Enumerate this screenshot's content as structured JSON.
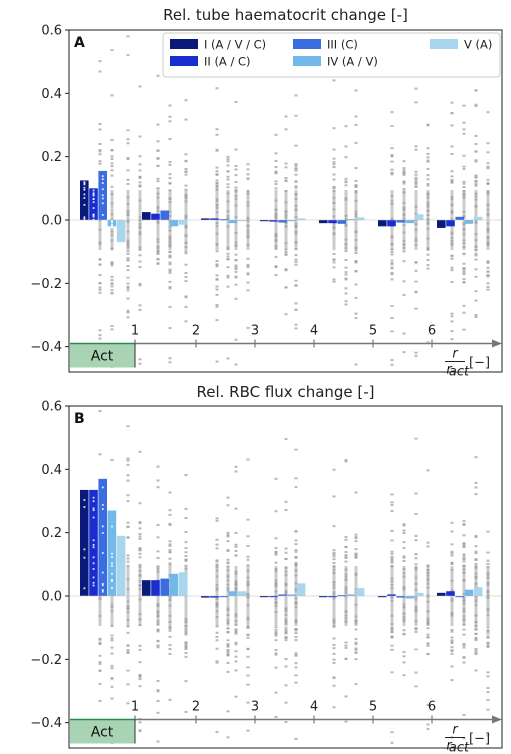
{
  "colors": {
    "I": "#0a1a7a",
    "II": "#1a2ed0",
    "III": "#3a6ee0",
    "IV": "#72b8e8",
    "V": "#a8d6ec",
    "scatter": "#a0a0a0",
    "act_fill": "#a8d4b4",
    "act_edge": "#2a8a4a",
    "axis_arrow": "#777777"
  },
  "legend": [
    "I (A / V / C)",
    "II (A / C)",
    "III (C)",
    "IV (A / V)",
    "V (A)"
  ],
  "axis_labels": {
    "r_numer": "r",
    "r_denom": "r",
    "r_sub": "act",
    "r_unit": "[−]",
    "act_box": "Act",
    "positions": [
      "1",
      "2",
      "3",
      "4",
      "5",
      "6"
    ]
  },
  "chart_data": [
    {
      "type": "bar",
      "panel_label": "A",
      "title": "Rel. tube haematocrit change [-]",
      "ylim": [
        -0.48,
        0.6
      ],
      "yticks": [
        "0.6",
        "0.4",
        "0.2",
        "0.0",
        "−0.2",
        "−0.4"
      ],
      "ytick_values": [
        0.6,
        0.4,
        0.2,
        0.0,
        -0.2,
        -0.4
      ],
      "categories": [
        "Act",
        "1",
        "2",
        "3",
        "4",
        "5",
        "6"
      ],
      "series": [
        {
          "name": "I (A / V / C)",
          "values": [
            0.125,
            0.025,
            0.005,
            0.0,
            -0.01,
            -0.02,
            -0.025
          ]
        },
        {
          "name": "II (A / C)",
          "values": [
            0.1,
            0.02,
            0.005,
            -0.005,
            -0.01,
            -0.02,
            -0.02
          ]
        },
        {
          "name": "III (C)",
          "values": [
            0.155,
            0.03,
            0.003,
            -0.008,
            -0.012,
            -0.008,
            0.01
          ]
        },
        {
          "name": "IV (A / V)",
          "values": [
            -0.02,
            -0.02,
            -0.01,
            -0.003,
            0.003,
            -0.01,
            -0.012
          ]
        },
        {
          "name": "V (A)",
          "values": [
            -0.07,
            -0.015,
            -0.003,
            0.005,
            0.008,
            0.018,
            0.01
          ]
        }
      ],
      "grid": false
    },
    {
      "type": "bar",
      "panel_label": "B",
      "title": "Rel. RBC flux change [-]",
      "ylim": [
        -0.48,
        0.6
      ],
      "yticks": [
        "0.6",
        "0.4",
        "0.2",
        "0.0",
        "−0.2",
        "−0.4"
      ],
      "ytick_values": [
        0.6,
        0.4,
        0.2,
        0.0,
        -0.2,
        -0.4
      ],
      "categories": [
        "Act",
        "1",
        "2",
        "3",
        "4",
        "5",
        "6"
      ],
      "series": [
        {
          "name": "I (A / V / C)",
          "values": [
            0.335,
            0.05,
            -0.005,
            0.0,
            0.0,
            0.0,
            0.01
          ]
        },
        {
          "name": "II (A / C)",
          "values": [
            0.335,
            0.05,
            -0.005,
            -0.003,
            0.0,
            0.005,
            0.015
          ]
        },
        {
          "name": "III (C)",
          "values": [
            0.37,
            0.055,
            0.0,
            0.005,
            0.003,
            -0.005,
            0.0
          ]
        },
        {
          "name": "IV (A / V)",
          "values": [
            0.27,
            0.07,
            0.015,
            0.005,
            0.005,
            -0.008,
            0.02
          ]
        },
        {
          "name": "V (A)",
          "values": [
            0.19,
            0.075,
            0.015,
            0.04,
            0.025,
            0.01,
            0.028
          ]
        }
      ],
      "grid": false
    }
  ]
}
